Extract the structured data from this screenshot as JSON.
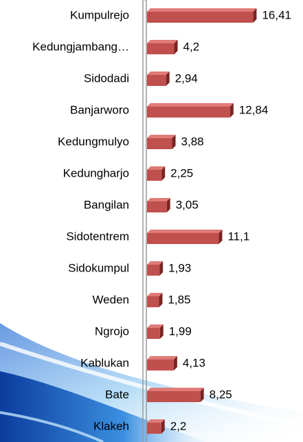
{
  "chart_data": {
    "type": "bar",
    "orientation": "horizontal",
    "categories": [
      "Kumpulrejo",
      "Kedungjambang…",
      "Sidodadi",
      "Banjarworo",
      "Kedungmulyo",
      "Kedungharjo",
      "Bangilan",
      "Sidotentrem",
      "Sidokumpul",
      "Weden",
      "Ngrojo",
      "Kablukan",
      "Bate",
      "Klakeh"
    ],
    "values": [
      16.41,
      4.2,
      2.94,
      12.84,
      3.88,
      2.25,
      3.05,
      11.1,
      1.93,
      1.85,
      1.99,
      4.13,
      8.25,
      2.2
    ],
    "value_labels": [
      "16,41",
      "4,2",
      "2,94",
      "12,84",
      "3,88",
      "2,25",
      "3,05",
      "11,1",
      "1,93",
      "1,85",
      "1,99",
      "4,13",
      "8,25",
      "2,2"
    ],
    "color": "#c0504d",
    "xlim": [
      0,
      17
    ]
  }
}
